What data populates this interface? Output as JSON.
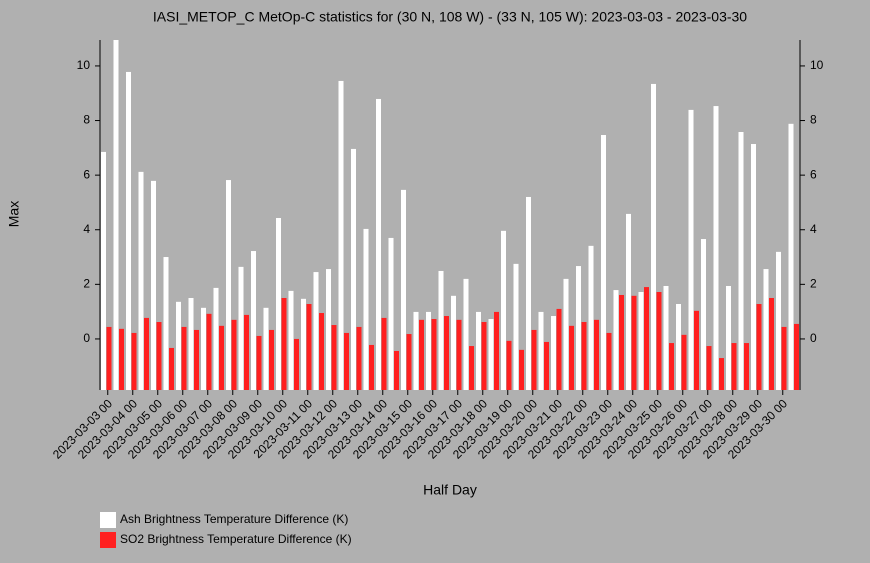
{
  "chart_data": {
    "type": "bar",
    "title": "IASI_METOP_C MetOp-C statistics for (30 N, 108 W) - (33 N, 105 W): 2023-03-03 - 2023-03-30",
    "y_label": "Max",
    "x_label": "Half Day",
    "categories": [
      "2023-03-03 00",
      null,
      "2023-03-04 00",
      null,
      "2023-03-05 00",
      null,
      "2023-03-06 00",
      null,
      "2023-03-07 00",
      null,
      "2023-03-08 00",
      null,
      "2023-03-09 00",
      null,
      "2023-03-10 00",
      null,
      "2023-03-11 00",
      null,
      "2023-03-12 00",
      null,
      "2023-03-13 00",
      null,
      "2023-03-14 00",
      null,
      "2023-03-15 00",
      null,
      "2023-03-16 00",
      null,
      "2023-03-17 00",
      null,
      "2023-03-18 00",
      null,
      "2023-03-19 00",
      null,
      "2023-03-20 00",
      null,
      "2023-03-21 00",
      null,
      "2023-03-22 00",
      null,
      "2023-03-23 00",
      null,
      "2023-03-24 00",
      null,
      "2023-03-25 00",
      null,
      "2023-03-26 00",
      null,
      "2023-03-27 00",
      null,
      "2023-03-28 00",
      null,
      "2023-03-29 00",
      null,
      "2023-03-30 00",
      null
    ],
    "series": [
      {
        "name": "Ash Brightness Temperature Difference (K)",
        "color": "#ffffff",
        "values": [
          6.85,
          10.95,
          9.78,
          6.12,
          5.79,
          3.0,
          1.36,
          1.5,
          1.14,
          1.87,
          5.82,
          2.64,
          3.22,
          1.14,
          4.43,
          1.76,
          1.47,
          2.45,
          2.56,
          9.45,
          6.96,
          4.03,
          8.79,
          3.7,
          5.46,
          0.99,
          0.99,
          2.49,
          1.58,
          2.2,
          0.99,
          0.73,
          3.96,
          2.75,
          5.2,
          0.99,
          0.84,
          2.2,
          2.67,
          3.41,
          7.47,
          1.79,
          4.58,
          1.72,
          9.34,
          1.94,
          1.28,
          8.39,
          3.66,
          8.53,
          1.94,
          7.58,
          7.14,
          2.56,
          3.19,
          7.88
        ]
      },
      {
        "name": "SO2 Brightness Temperature Difference (K)",
        "color": "#ff2020",
        "values": [
          0.44,
          0.37,
          0.22,
          0.77,
          0.62,
          -0.33,
          0.44,
          0.33,
          0.92,
          0.48,
          0.7,
          0.88,
          0.11,
          0.33,
          1.5,
          0.0,
          1.28,
          0.95,
          0.51,
          0.22,
          0.44,
          -0.22,
          0.77,
          -0.44,
          0.18,
          0.7,
          0.73,
          0.84,
          0.7,
          -0.26,
          0.62,
          0.99,
          -0.07,
          -0.4,
          0.33,
          -0.11,
          1.1,
          0.48,
          0.62,
          0.7,
          0.22,
          1.61,
          1.58,
          1.9,
          1.72,
          -0.15,
          0.15,
          1.03,
          -0.26,
          -0.7,
          -0.15,
          -0.15,
          1.28,
          1.5,
          0.44,
          0.55
        ]
      }
    ],
    "ylim": [
      -1.87,
      10.95
    ],
    "yticks": [
      0,
      2,
      4,
      6,
      8,
      10
    ]
  }
}
